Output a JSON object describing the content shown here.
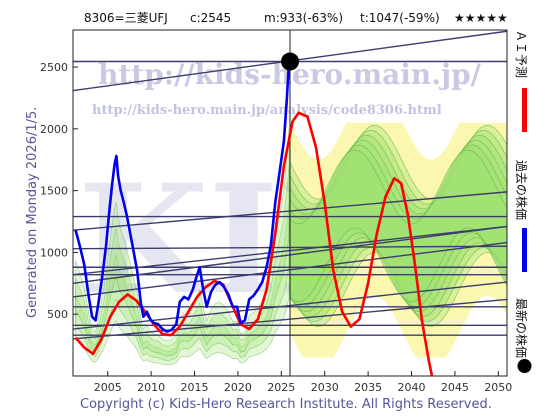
{
  "header": {
    "code": "8306=三菱UFJ",
    "current": "c:2545",
    "m_value": "m:933(-63%)",
    "t_value": "t:1047(-59%)",
    "stars": "★★★★★"
  },
  "generated_text": "Generated on Monday 2026/1/5.",
  "copyright": "Copyright (c) Kids-Hero Research Institute. All Rights Reserved.",
  "watermark": {
    "url": "http://kids-hero.main.jp/",
    "analysis_url": "http://kids-hero.main.jp/analysis/code8306.html",
    "big_text": "KIDS"
  },
  "legend": {
    "ai_forecast": "ＡＩ予測",
    "past_price": "過去の株価",
    "latest_price": "最新の株価"
  },
  "colors": {
    "ai_forecast": "#ff0000",
    "past_price": "#0000ee",
    "latest_price": "#000000",
    "trend_lines": "#3c3c6e",
    "band_green": "#9be070",
    "band_yellow": "#fbf7b0"
  },
  "chart_data": {
    "type": "line",
    "title": "",
    "xlabel": "",
    "ylabel": "",
    "xlim": [
      2001,
      2051
    ],
    "ylim": [
      0,
      2800
    ],
    "x_ticks": [
      2005,
      2010,
      2015,
      2020,
      2025,
      2030,
      2035,
      2040,
      2045,
      2050
    ],
    "y_ticks": [
      500,
      1000,
      1500,
      2000,
      2500
    ],
    "grid": false,
    "latest_point": {
      "x": 2026.0,
      "y": 2545
    },
    "vertical_marker_x": 2026.0,
    "series": [
      {
        "role": "past_price",
        "points": [
          [
            2001.3,
            1180
          ],
          [
            2001.8,
            1050
          ],
          [
            2002.3,
            900
          ],
          [
            2002.8,
            650
          ],
          [
            2003.2,
            480
          ],
          [
            2003.6,
            450
          ],
          [
            2004.0,
            620
          ],
          [
            2004.4,
            820
          ],
          [
            2004.8,
            1050
          ],
          [
            2005.2,
            1350
          ],
          [
            2005.5,
            1550
          ],
          [
            2005.8,
            1720
          ],
          [
            2006.0,
            1780
          ],
          [
            2006.2,
            1620
          ],
          [
            2006.5,
            1500
          ],
          [
            2006.8,
            1420
          ],
          [
            2007.2,
            1300
          ],
          [
            2007.6,
            1150
          ],
          [
            2008.0,
            1000
          ],
          [
            2008.4,
            850
          ],
          [
            2008.8,
            600
          ],
          [
            2009.1,
            480
          ],
          [
            2009.5,
            520
          ],
          [
            2009.9,
            460
          ],
          [
            2010.3,
            430
          ],
          [
            2010.8,
            420
          ],
          [
            2011.3,
            380
          ],
          [
            2011.8,
            360
          ],
          [
            2012.3,
            370
          ],
          [
            2012.9,
            420
          ],
          [
            2013.3,
            600
          ],
          [
            2013.8,
            640
          ],
          [
            2014.3,
            620
          ],
          [
            2014.8,
            700
          ],
          [
            2015.3,
            820
          ],
          [
            2015.6,
            880
          ],
          [
            2016.0,
            700
          ],
          [
            2016.4,
            560
          ],
          [
            2016.9,
            680
          ],
          [
            2017.4,
            740
          ],
          [
            2017.9,
            760
          ],
          [
            2018.4,
            720
          ],
          [
            2018.9,
            660
          ],
          [
            2019.4,
            560
          ],
          [
            2019.9,
            560
          ],
          [
            2020.3,
            430
          ],
          [
            2020.8,
            450
          ],
          [
            2021.3,
            620
          ],
          [
            2021.8,
            650
          ],
          [
            2022.3,
            700
          ],
          [
            2022.8,
            760
          ],
          [
            2023.3,
            880
          ],
          [
            2023.8,
            1060
          ],
          [
            2024.3,
            1400
          ],
          [
            2024.7,
            1600
          ],
          [
            2025.0,
            1750
          ],
          [
            2025.3,
            1900
          ],
          [
            2025.6,
            2200
          ],
          [
            2025.9,
            2545
          ]
        ]
      },
      {
        "role": "ai_forecast",
        "points": [
          [
            2001.3,
            310
          ],
          [
            2002.3,
            230
          ],
          [
            2003.3,
            180
          ],
          [
            2004.3,
            300
          ],
          [
            2005.3,
            480
          ],
          [
            2006.3,
            600
          ],
          [
            2007.3,
            660
          ],
          [
            2008.3,
            610
          ],
          [
            2009.3,
            520
          ],
          [
            2010.3,
            420
          ],
          [
            2011.3,
            340
          ],
          [
            2012.3,
            330
          ],
          [
            2013.3,
            400
          ],
          [
            2014.3,
            520
          ],
          [
            2015.3,
            640
          ],
          [
            2016.3,
            720
          ],
          [
            2017.3,
            770
          ],
          [
            2018.3,
            740
          ],
          [
            2019.3,
            580
          ],
          [
            2020.3,
            420
          ],
          [
            2021.3,
            380
          ],
          [
            2022.3,
            460
          ],
          [
            2023.3,
            700
          ],
          [
            2024.3,
            1150
          ],
          [
            2025.3,
            1700
          ],
          [
            2026.3,
            2060
          ],
          [
            2027.0,
            2130
          ],
          [
            2028.0,
            2100
          ],
          [
            2029.0,
            1850
          ],
          [
            2030.0,
            1400
          ],
          [
            2031.0,
            850
          ],
          [
            2032.0,
            520
          ],
          [
            2033.0,
            400
          ],
          [
            2034.0,
            460
          ],
          [
            2035.0,
            750
          ],
          [
            2036.0,
            1150
          ],
          [
            2037.0,
            1450
          ],
          [
            2038.0,
            1600
          ],
          [
            2038.8,
            1560
          ],
          [
            2039.6,
            1300
          ],
          [
            2040.4,
            900
          ],
          [
            2041.2,
            450
          ],
          [
            2042.0,
            120
          ],
          [
            2042.8,
            -150
          ]
        ]
      }
    ],
    "trend_lines": [
      [
        [
          2001,
          2310
        ],
        [
          2051,
          2790
        ]
      ],
      [
        [
          2001,
          2545
        ],
        [
          2051,
          2545
        ]
      ],
      [
        [
          2001,
          1290
        ],
        [
          2051,
          1290
        ]
      ],
      [
        [
          2001,
          1180
        ],
        [
          2051,
          1490
        ]
      ],
      [
        [
          2001,
          1030
        ],
        [
          2051,
          1050
        ]
      ],
      [
        [
          2001,
          820
        ],
        [
          2051,
          1210
        ]
      ],
      [
        [
          2001,
          750
        ],
        [
          2051,
          1210
        ]
      ],
      [
        [
          2001,
          640
        ],
        [
          2051,
          1080
        ]
      ],
      [
        [
          2001,
          880
        ],
        [
          2051,
          880
        ]
      ],
      [
        [
          2001,
          820
        ],
        [
          2051,
          820
        ]
      ],
      [
        [
          2001,
          560
        ],
        [
          2051,
          560
        ]
      ],
      [
        [
          2001,
          380
        ],
        [
          2051,
          760
        ]
      ],
      [
        [
          2001,
          300
        ],
        [
          2051,
          620
        ]
      ],
      [
        [
          2001,
          330
        ],
        [
          2051,
          330
        ]
      ],
      [
        [
          2001,
          410
        ],
        [
          2051,
          410
        ]
      ]
    ]
  }
}
